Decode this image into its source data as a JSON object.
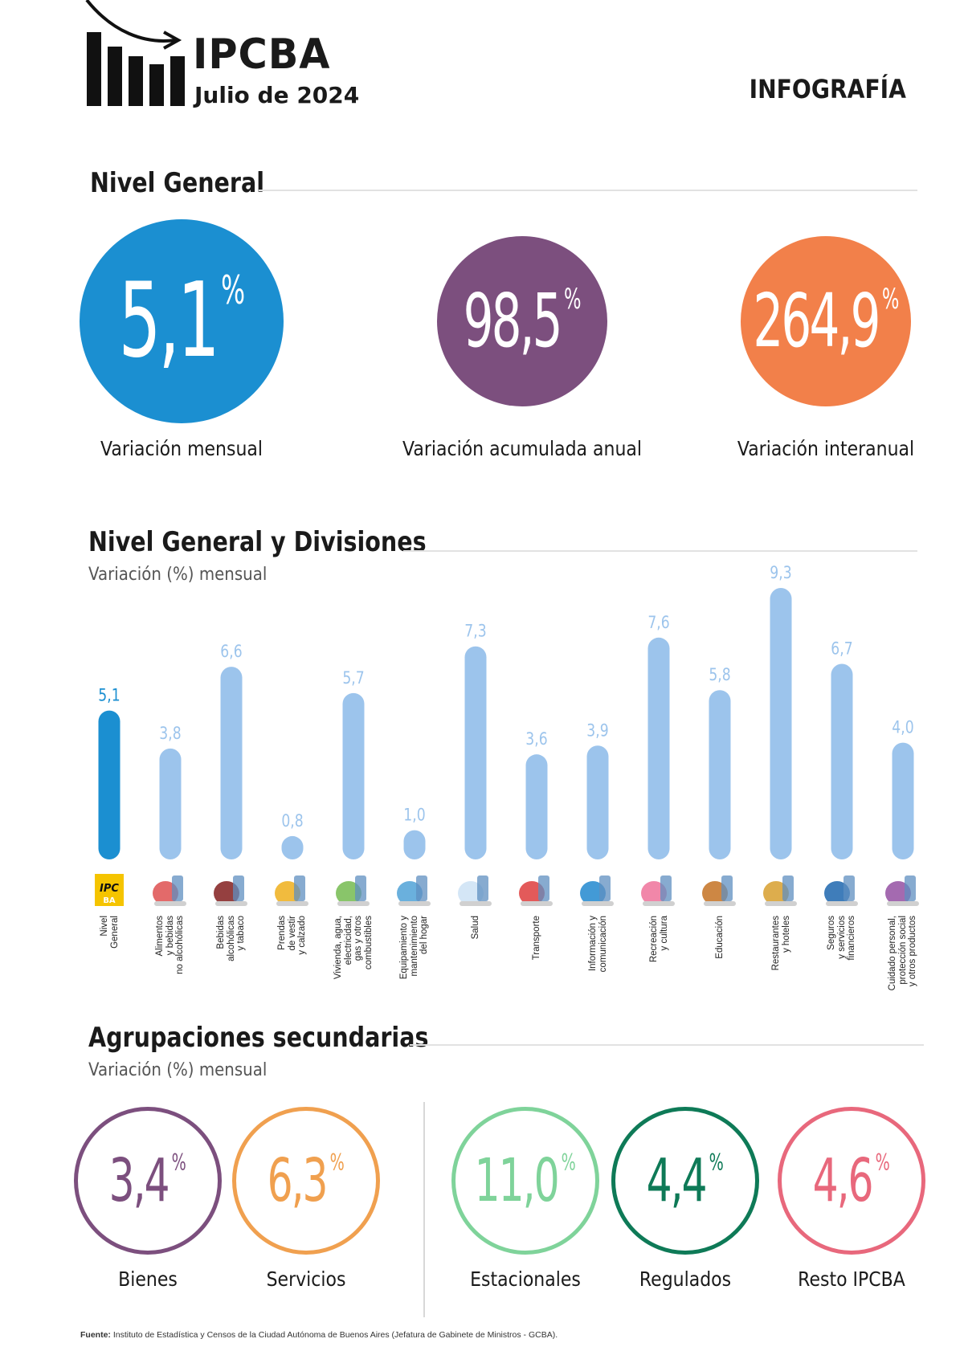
{
  "header": {
    "title": "IPCBA",
    "subtitle": "Julio de 2024",
    "tag": "INFOGRAFÍA"
  },
  "nivel_general": {
    "heading": "Nivel General",
    "cards": [
      {
        "value": "5,1",
        "unit": "%",
        "label": "Variación mensual",
        "color": "#1b8fd1"
      },
      {
        "value": "98,5",
        "unit": "%",
        "label": "Variación acumulada anual",
        "color": "#7c4f7e"
      },
      {
        "value": "264,9",
        "unit": "%",
        "label": "Variación interanual",
        "color": "#f2804a"
      }
    ]
  },
  "divisiones": {
    "heading": "Nivel General y Divisiones",
    "subheading": "Variación (%) mensual",
    "highlight_color": "#1b8fd1",
    "bar_color": "#9cc4ec",
    "label_color": "#9cc4ec",
    "categories": [
      {
        "label": "Nivel\nGeneral",
        "icon": "ipcba-logo-icon"
      },
      {
        "label": "Alimentos\ny bebidas\nno alcohólicas",
        "icon": "food-icon"
      },
      {
        "label": "Bebidas\nalcohólicas\ny tabaco",
        "icon": "wine-bottle-icon"
      },
      {
        "label": "Prendas\nde vestir\ny calzado",
        "icon": "jacket-icon"
      },
      {
        "label": "Vivienda, agua,\nelectricidad,\ngas y otros\ncombustibles",
        "icon": "house-icon"
      },
      {
        "label": "Equipamiento y\nmantenimiento\ndel hogar",
        "icon": "washing-machine-icon"
      },
      {
        "label": "Salud",
        "icon": "doctor-icon"
      },
      {
        "label": "Transporte",
        "icon": "car-plane-icon"
      },
      {
        "label": "Información y\ncomunicación",
        "icon": "computer-icon"
      },
      {
        "label": "Recreación\ny cultura",
        "icon": "theater-masks-icon"
      },
      {
        "label": "Educación",
        "icon": "school-icon"
      },
      {
        "label": "Restaurantes\ny hoteles",
        "icon": "cutlery-icon"
      },
      {
        "label": "Seguros\ny servicios\nfinancieros",
        "icon": "bank-icon"
      },
      {
        "label": "Cuidado personal,\nprotección social\ny otros productos",
        "icon": "personal-care-icon"
      }
    ]
  },
  "chart_data": {
    "type": "bar",
    "title": "Nivel General y Divisiones",
    "subtitle": "Variación (%) mensual",
    "categories": [
      "Nivel General",
      "Alimentos y bebidas no alcohólicas",
      "Bebidas alcohólicas y tabaco",
      "Prendas de vestir y calzado",
      "Vivienda, agua, electricidad, gas y otros combustibles",
      "Equipamiento y mantenimiento del hogar",
      "Salud",
      "Transporte",
      "Información y comunicación",
      "Recreación y cultura",
      "Educación",
      "Restaurantes y hoteles",
      "Seguros y servicios financieros",
      "Cuidado personal, protección social y otros productos"
    ],
    "values": [
      5.1,
      3.8,
      6.6,
      0.8,
      5.7,
      1.0,
      7.3,
      3.6,
      3.9,
      7.6,
      5.8,
      9.3,
      6.7,
      4.0
    ],
    "value_labels": [
      "5,1",
      "3,8",
      "6,6",
      "0,8",
      "5,7",
      "1,0",
      "7,3",
      "3,6",
      "3,9",
      "7,6",
      "5,8",
      "9,3",
      "6,7",
      "4,0"
    ],
    "xlabel": "",
    "ylabel": "",
    "ylim": [
      0,
      9.3
    ],
    "grid": false,
    "legend": "none"
  },
  "agrupaciones": {
    "heading": "Agrupaciones secundarias",
    "subheading": "Variación (%) mensual",
    "items": [
      {
        "value": "3,4",
        "unit": "%",
        "label": "Bienes",
        "color": "#7c4f7e"
      },
      {
        "value": "6,3",
        "unit": "%",
        "label": "Servicios",
        "color": "#f0a04f"
      },
      {
        "value": "11,0",
        "unit": "%",
        "label": "Estacionales",
        "color": "#7fd39a"
      },
      {
        "value": "4,4",
        "unit": "%",
        "label": "Regulados",
        "color": "#0e7a57"
      },
      {
        "value": "4,6",
        "unit": "%",
        "label": "Resto IPCBA",
        "color": "#e8687c"
      }
    ]
  },
  "footer": {
    "label": "Fuente:",
    "text": "Instituto de Estadística y Censos de la Ciudad Autónoma de Buenos Aires (Jefatura de Gabinete de Ministros - GCBA)."
  }
}
